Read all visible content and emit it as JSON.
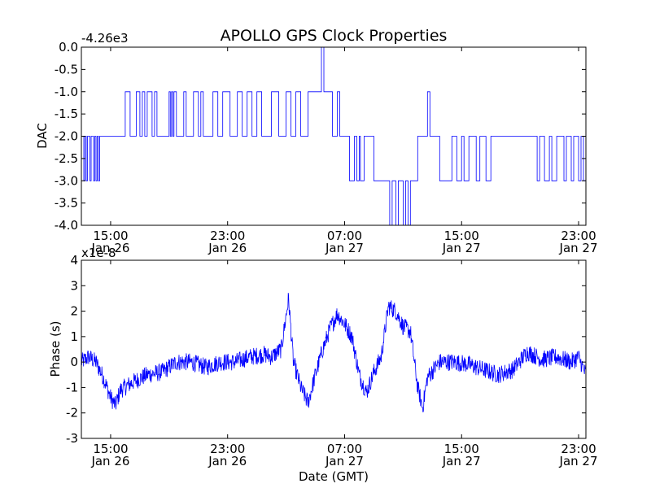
{
  "title": "APOLLO GPS Clock Properties",
  "colors": {
    "line": "#0000ff",
    "frame": "#000000",
    "background": "#ffffff"
  },
  "chart_data": [
    {
      "type": "line",
      "ylabel": "DAC",
      "xlabel": "",
      "y_offset_label": "-4.26e3",
      "ylim": [
        -4.0,
        0.0
      ],
      "yticks": [
        0.0,
        -0.5,
        -1.0,
        -1.5,
        -2.0,
        -2.5,
        -3.0,
        -3.5,
        -4.0
      ],
      "ytick_labels": [
        "0.0",
        "-0.5",
        "-1.0",
        "-1.5",
        "-2.0",
        "-2.5",
        "-3.0",
        "-3.5",
        "-4.0"
      ],
      "xlim_hours_axis": "Jan 26 13:00 to Jan 27 23:30 (GMT)",
      "xticks": [
        {
          "time": "Jan 26 15:00",
          "line1": "15:00",
          "line2": "Jan 26"
        },
        {
          "time": "Jan 26 23:00",
          "line1": "23:00",
          "line2": "Jan 26"
        },
        {
          "time": "Jan 27 07:00",
          "line1": "07:00",
          "line2": "Jan 27"
        },
        {
          "time": "Jan 27 15:00",
          "line1": "15:00",
          "line2": "Jan 27"
        },
        {
          "time": "Jan 27 23:00",
          "line1": "23:00",
          "line2": "Jan 27"
        }
      ],
      "series": [
        {
          "color": "#0000ff",
          "style": "steps",
          "points": [
            [
              "Jan 26 13:00",
              -2
            ],
            [
              "Jan 26 13:10",
              -3
            ],
            [
              "Jan 26 13:15",
              -2
            ],
            [
              "Jan 26 13:20",
              -3
            ],
            [
              "Jan 26 13:25",
              -2
            ],
            [
              "Jan 26 13:35",
              -3
            ],
            [
              "Jan 26 13:40",
              -2
            ],
            [
              "Jan 26 13:50",
              -3
            ],
            [
              "Jan 26 13:55",
              -2
            ],
            [
              "Jan 26 14:00",
              -3
            ],
            [
              "Jan 26 14:05",
              -2
            ],
            [
              "Jan 26 14:10",
              -3
            ],
            [
              "Jan 26 14:15",
              -2
            ],
            [
              "Jan 26 15:00",
              -2
            ],
            [
              "Jan 26 16:00",
              -1
            ],
            [
              "Jan 26 16:20",
              -2
            ],
            [
              "Jan 26 16:45",
              -1
            ],
            [
              "Jan 26 17:00",
              -2
            ],
            [
              "Jan 26 17:10",
              -1
            ],
            [
              "Jan 26 17:20",
              -2
            ],
            [
              "Jan 26 17:30",
              -1
            ],
            [
              "Jan 26 17:50",
              -2
            ],
            [
              "Jan 26 18:00",
              -1
            ],
            [
              "Jan 26 18:10",
              -2
            ],
            [
              "Jan 26 19:00",
              -1
            ],
            [
              "Jan 26 19:05",
              -2
            ],
            [
              "Jan 26 19:10",
              -1
            ],
            [
              "Jan 26 19:15",
              -2
            ],
            [
              "Jan 26 19:20",
              -1
            ],
            [
              "Jan 26 19:30",
              -2
            ],
            [
              "Jan 26 20:00",
              -1
            ],
            [
              "Jan 26 20:10",
              -2
            ],
            [
              "Jan 26 20:40",
              -1
            ],
            [
              "Jan 26 21:00",
              -2
            ],
            [
              "Jan 26 21:10",
              -1
            ],
            [
              "Jan 26 21:20",
              -2
            ],
            [
              "Jan 26 22:00",
              -1
            ],
            [
              "Jan 26 22:20",
              -2
            ],
            [
              "Jan 26 22:40",
              -1
            ],
            [
              "Jan 26 23:10",
              -2
            ],
            [
              "Jan 26 23:40",
              -1
            ],
            [
              "Jan 27 00:00",
              -2
            ],
            [
              "Jan 27 00:20",
              -1
            ],
            [
              "Jan 27 00:40",
              -2
            ],
            [
              "Jan 27 01:00",
              -1
            ],
            [
              "Jan 27 01:20",
              -2
            ],
            [
              "Jan 27 02:00",
              -1
            ],
            [
              "Jan 27 02:30",
              -2
            ],
            [
              "Jan 27 03:00",
              -1
            ],
            [
              "Jan 27 03:20",
              -2
            ],
            [
              "Jan 27 03:40",
              -1
            ],
            [
              "Jan 27 04:00",
              -2
            ],
            [
              "Jan 27 04:30",
              -1
            ],
            [
              "Jan 27 05:20",
              -1
            ],
            [
              "Jan 27 05:25",
              0
            ],
            [
              "Jan 27 05:35",
              -1
            ],
            [
              "Jan 27 06:00",
              -1
            ],
            [
              "Jan 27 06:10",
              -2
            ],
            [
              "Jan 27 06:30",
              -1
            ],
            [
              "Jan 27 06:40",
              -2
            ],
            [
              "Jan 27 07:00",
              -2
            ],
            [
              "Jan 27 07:20",
              -3
            ],
            [
              "Jan 27 07:40",
              -2
            ],
            [
              "Jan 27 07:50",
              -3
            ],
            [
              "Jan 27 08:00",
              -2
            ],
            [
              "Jan 27 08:05",
              -3
            ],
            [
              "Jan 27 08:20",
              -2
            ],
            [
              "Jan 27 08:40",
              -2
            ],
            [
              "Jan 27 09:00",
              -3
            ],
            [
              "Jan 27 10:00",
              -3
            ],
            [
              "Jan 27 10:05",
              -4
            ],
            [
              "Jan 27 10:15",
              -3
            ],
            [
              "Jan 27 10:30",
              -4
            ],
            [
              "Jan 27 10:40",
              -3
            ],
            [
              "Jan 27 11:00",
              -4
            ],
            [
              "Jan 27 11:10",
              -3
            ],
            [
              "Jan 27 11:20",
              -4
            ],
            [
              "Jan 27 11:30",
              -3
            ],
            [
              "Jan 27 12:00",
              -2
            ],
            [
              "Jan 27 12:20",
              -2
            ],
            [
              "Jan 27 12:40",
              -1
            ],
            [
              "Jan 27 12:50",
              -2
            ],
            [
              "Jan 27 13:00",
              -2
            ],
            [
              "Jan 27 13:30",
              -3
            ],
            [
              "Jan 27 14:20",
              -2
            ],
            [
              "Jan 27 14:40",
              -3
            ],
            [
              "Jan 27 15:00",
              -2
            ],
            [
              "Jan 27 15:10",
              -3
            ],
            [
              "Jan 27 15:30",
              -2
            ],
            [
              "Jan 27 16:00",
              -3
            ],
            [
              "Jan 27 16:15",
              -2
            ],
            [
              "Jan 27 16:40",
              -3
            ],
            [
              "Jan 27 17:00",
              -2
            ],
            [
              "Jan 27 18:00",
              -2
            ],
            [
              "Jan 27 19:00",
              -2
            ],
            [
              "Jan 27 20:10",
              -3
            ],
            [
              "Jan 27 20:20",
              -2
            ],
            [
              "Jan 27 20:40",
              -3
            ],
            [
              "Jan 27 21:00",
              -2
            ],
            [
              "Jan 27 21:10",
              -3
            ],
            [
              "Jan 27 21:30",
              -2
            ],
            [
              "Jan 27 22:00",
              -3
            ],
            [
              "Jan 27 22:10",
              -2
            ],
            [
              "Jan 27 22:30",
              -3
            ],
            [
              "Jan 27 22:40",
              -2
            ],
            [
              "Jan 27 23:00",
              -3
            ],
            [
              "Jan 27 23:10",
              -2
            ],
            [
              "Jan 27 23:20",
              -3
            ],
            [
              "Jan 27 23:30",
              -2
            ]
          ]
        }
      ]
    },
    {
      "type": "line",
      "ylabel": "Phase (s)",
      "xlabel": "Date (GMT)",
      "y_offset_label": "x1e-8",
      "ylim": [
        -3,
        4
      ],
      "yticks": [
        4,
        3,
        2,
        1,
        0,
        -1,
        -2,
        -3
      ],
      "ytick_labels": [
        "4",
        "3",
        "2",
        "1",
        "0",
        "-1",
        "-2",
        "-3"
      ],
      "xticks": [
        {
          "time": "Jan 26 15:00",
          "line1": "15:00",
          "line2": "Jan 26"
        },
        {
          "time": "Jan 26 23:00",
          "line1": "23:00",
          "line2": "Jan 26"
        },
        {
          "time": "Jan 27 07:00",
          "line1": "07:00",
          "line2": "Jan 27"
        },
        {
          "time": "Jan 27 15:00",
          "line1": "15:00",
          "line2": "Jan 27"
        },
        {
          "time": "Jan 27 23:00",
          "line1": "23:00",
          "line2": "Jan 27"
        }
      ],
      "series": [
        {
          "color": "#0000ff",
          "style": "noisy-line",
          "noise_amplitude": 0.35,
          "points": [
            [
              "Jan 26 13:00",
              0.0
            ],
            [
              "Jan 26 13:30",
              0.2
            ],
            [
              "Jan 26 14:00",
              0.0
            ],
            [
              "Jan 26 14:30",
              -0.6
            ],
            [
              "Jan 26 15:00",
              -1.4
            ],
            [
              "Jan 26 15:20",
              -1.7
            ],
            [
              "Jan 26 15:40",
              -1.1
            ],
            [
              "Jan 26 16:30",
              -0.8
            ],
            [
              "Jan 26 17:30",
              -0.5
            ],
            [
              "Jan 26 18:30",
              -0.4
            ],
            [
              "Jan 26 19:30",
              0.0
            ],
            [
              "Jan 26 20:30",
              0.0
            ],
            [
              "Jan 26 21:30",
              -0.2
            ],
            [
              "Jan 26 22:30",
              0.0
            ],
            [
              "Jan 26 23:30",
              0.0
            ],
            [
              "Jan 27 00:30",
              0.2
            ],
            [
              "Jan 27 01:30",
              0.3
            ],
            [
              "Jan 27 02:00",
              0.2
            ],
            [
              "Jan 27 02:40",
              0.5
            ],
            [
              "Jan 27 03:10",
              2.5
            ],
            [
              "Jan 27 03:30",
              0.0
            ],
            [
              "Jan 27 04:00",
              -1.0
            ],
            [
              "Jan 27 04:30",
              -1.6
            ],
            [
              "Jan 27 05:00",
              -0.5
            ],
            [
              "Jan 27 05:30",
              0.5
            ],
            [
              "Jan 27 06:00",
              1.3
            ],
            [
              "Jan 27 06:30",
              1.9
            ],
            [
              "Jan 27 07:00",
              1.5
            ],
            [
              "Jan 27 07:30",
              1.0
            ],
            [
              "Jan 27 08:00",
              -0.5
            ],
            [
              "Jan 27 08:30",
              -1.2
            ],
            [
              "Jan 27 09:00",
              -0.4
            ],
            [
              "Jan 27 09:30",
              0.2
            ],
            [
              "Jan 27 10:00",
              2.2
            ],
            [
              "Jan 27 10:30",
              2.0
            ],
            [
              "Jan 27 11:00",
              1.4
            ],
            [
              "Jan 27 11:30",
              1.2
            ],
            [
              "Jan 27 12:00",
              -1.0
            ],
            [
              "Jan 27 12:20",
              -1.8
            ],
            [
              "Jan 27 12:40",
              -0.6
            ],
            [
              "Jan 27 13:30",
              0.0
            ],
            [
              "Jan 27 14:30",
              0.0
            ],
            [
              "Jan 27 15:30",
              -0.1
            ],
            [
              "Jan 27 16:30",
              -0.3
            ],
            [
              "Jan 27 17:30",
              -0.5
            ],
            [
              "Jan 27 18:30",
              -0.3
            ],
            [
              "Jan 27 19:30",
              0.4
            ],
            [
              "Jan 27 20:30",
              0.1
            ],
            [
              "Jan 27 21:30",
              0.2
            ],
            [
              "Jan 27 22:30",
              0.0
            ],
            [
              "Jan 27 23:00",
              0.2
            ],
            [
              "Jan 27 23:30",
              -0.5
            ]
          ]
        }
      ]
    }
  ]
}
